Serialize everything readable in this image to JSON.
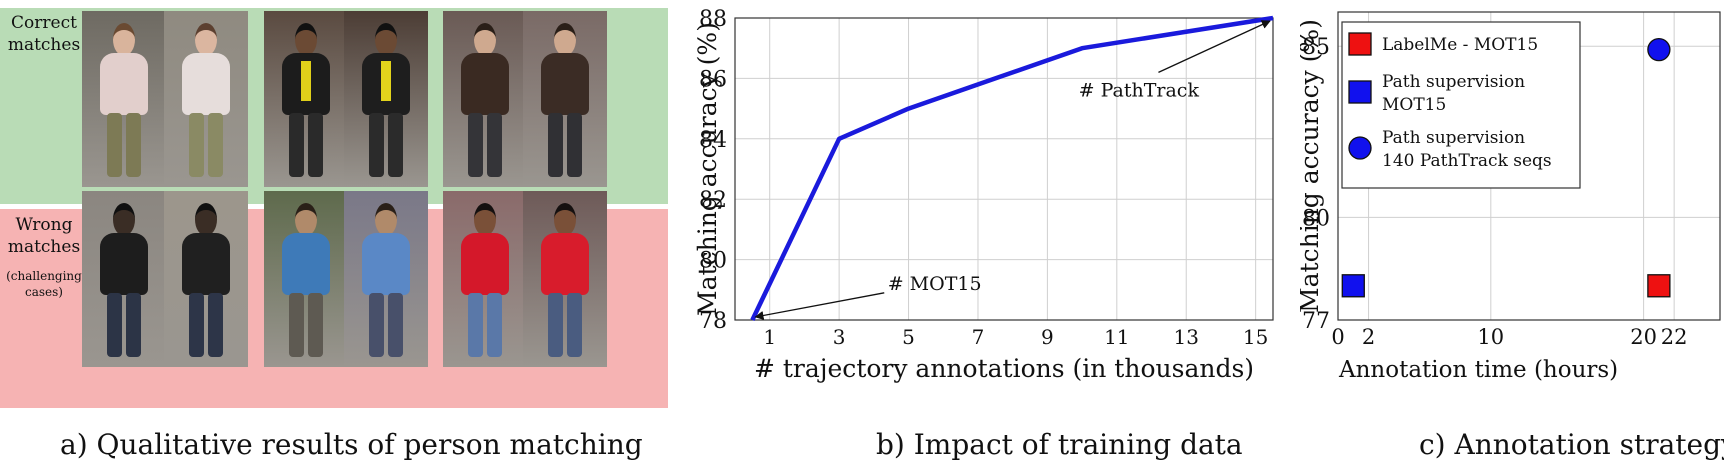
{
  "panel_a": {
    "caption": "a) Qualitative results of person matching",
    "correct_label_1": "Correct",
    "correct_label_2": "matches",
    "wrong_label_1": "Wrong",
    "wrong_label_2": "matches",
    "wrong_note_1": "(challenging",
    "wrong_note_2": "cases)",
    "colors": {
      "correct_band": "#b9dcb6",
      "wrong_band": "#f6b3b3"
    }
  },
  "chart_data": [
    {
      "type": "line",
      "caption": "b) Impact of training data",
      "xlabel": "# trajectory annotations (in thousands)",
      "ylabel": "Matching accuracy (%)",
      "xlim": [
        0,
        15.5
      ],
      "ylim": [
        78,
        88
      ],
      "xticks": [
        1,
        3,
        5,
        7,
        9,
        11,
        13,
        15
      ],
      "yticks": [
        78,
        80,
        82,
        84,
        86,
        88
      ],
      "grid": true,
      "series": [
        {
          "x": [
            0.5,
            3,
            5,
            7.5,
            10,
            15.5
          ],
          "y": [
            78,
            84,
            85,
            86,
            87,
            88
          ],
          "color": "#1a1adc"
        }
      ],
      "annotations": [
        {
          "text": "# MOT15",
          "x": 0.5,
          "y": 78
        },
        {
          "text": "# PathTrack",
          "x": 15.5,
          "y": 88
        }
      ]
    },
    {
      "type": "scatter",
      "caption": "c) Annotation strategy",
      "xlabel": "Annotation time (hours)",
      "ylabel": "Matching accuracy (%)",
      "xlim": [
        0,
        25
      ],
      "ylim": [
        77,
        86
      ],
      "xticks": [
        0,
        2,
        10,
        20,
        22
      ],
      "yticks": [
        77,
        80,
        85
      ],
      "grid": true,
      "legend_position": "top-left",
      "series": [
        {
          "name_lines": [
            "LabelMe - MOT15"
          ],
          "marker": "square",
          "color": "#ee1111",
          "x": [
            21
          ],
          "y": [
            78
          ]
        },
        {
          "name_lines": [
            "Path supervision",
            "MOT15"
          ],
          "marker": "square",
          "color": "#1111ee",
          "x": [
            1
          ],
          "y": [
            78
          ]
        },
        {
          "name_lines": [
            "Path supervision",
            "140 PathTrack seqs"
          ],
          "marker": "circle",
          "color": "#1111ee",
          "x": [
            21
          ],
          "y": [
            84.9
          ]
        }
      ]
    }
  ]
}
